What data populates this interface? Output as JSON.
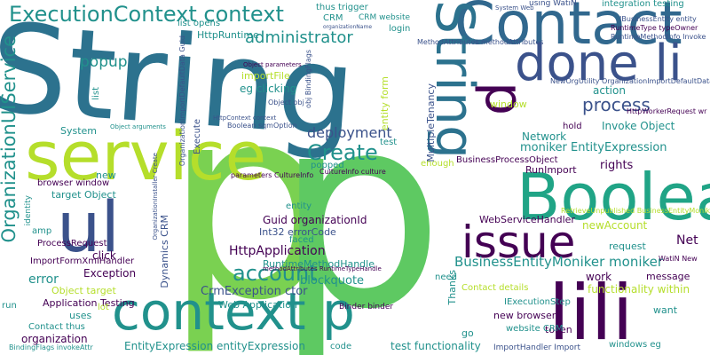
{
  "cloud": {
    "palette": [
      "#440154",
      "#3b528b",
      "#21918c",
      "#5ec962",
      "#fde725"
    ],
    "words": {
      "string": "String",
      "p_big": "p",
      "p_right": "p",
      "service": "service",
      "context_p": "context p",
      "contact": "Contact",
      "done_li": "done li",
      "boolean": "Boolean",
      "lili": "lili",
      "issue": "issue",
      "ul": "ul",
      "org_ui_service": "OrganizationUIService",
      "execution_context": "ExecutionContext context",
      "create": "Create",
      "account": "account",
      "process": "process",
      "administrator": "administrator",
      "popup": "popup",
      "deployment": "deployment",
      "http_application": "HttpApplication",
      "bem_moniker": "BusinessEntityMoniker moniker",
      "blockquote": "blockquote",
      "crm_exception": "CrmException ctor",
      "guid_org_id": "Guid organizationId",
      "int32_error": "Int32 errorCode",
      "rt_method_handle": "RuntimeMethodHandle",
      "web_application": "Web Application",
      "entity_expression": "EntityExpression entityExpression",
      "test_functionality": "test functionality",
      "moniker_entity_expr": "moniker EntityExpression",
      "network": "Network",
      "invoke_object": "Invoke Object",
      "rights": "rights",
      "run_import": "RunImport",
      "bpo": "BusinessProcessObject",
      "action": "action",
      "web_service_handler": "WebServiceHandler",
      "new_account": "newAccount",
      "net": "Net",
      "request": "request",
      "work": "work",
      "message": "message",
      "functionality_within": "functionality within",
      "want": "want",
      "token": "token",
      "new_browser": "new browser",
      "website_crm": "website CRM",
      "contact_details": "Contact details",
      "iexecution_step": "IExecutionStep",
      "import_handler": "ImportHandler Import",
      "windows_eg": "windows eg",
      "exception": "Exception",
      "error": "error",
      "application_testing": "Application Testing",
      "uses": "uses",
      "contact_thus": "Contact thus",
      "organization": "organization",
      "import_form_handler": "ImportFormXmlHandler",
      "process_request": "ProcessRequest",
      "object_target": "Object target",
      "target_object": "target Object",
      "browser_window": "browser window",
      "click": "click",
      "lot": "lot",
      "amp": "amp",
      "run": "run",
      "system": "System",
      "new": "new",
      "dynamics_crm": "Dynamics CRM",
      "http_runtime": "HttpRuntime",
      "list_opens": "list opens",
      "thus_trigger": "thus trigger",
      "crm": "CRM",
      "crm_website": "CRM website",
      "login": "login",
      "using_watin": "using WatiN",
      "integration_testing": "integration testing",
      "import_file": "importFile",
      "eg_clicking": "eg clicking",
      "object_obj": "Object obj",
      "object_params": "Object parameters",
      "boolean_sqm": "Boolean sqmOption",
      "httpctx_context": "HttpContext context",
      "execute": "Execute",
      "entity_form": "entity form",
      "window": "window",
      "multiple_tenancy": "MultipleTenancy",
      "test": "test",
      "hold": "hold",
      "enough": "enough",
      "popped": "popped",
      "entity": "entity",
      "faced": "faced",
      "code": "code",
      "need": "need",
      "go": "go",
      "binder_binder": "Binder binder",
      "thanks": "Thanks",
      "method_attributes": "MethodAttributes methodAttributes",
      "params_culture": "parameters CultureInfo",
      "culture_info": "CultureInfo culture",
      "list": "list",
      "identity": "identity",
      "ibusiness_entity": "IBusinessEntity entity",
      "rtt_owner": "RuntimeType typeOwner",
      "rtmi_invoke": "RuntimeMethodInfo Invoke",
      "new_org_utility": "NewOrgUtility OrganizationImportDefaultData",
      "http_worker_request": "HttpWorkerRequest wr",
      "watin_new": "WatiN New",
      "rt_unpublished": "RetrieveUnpublished BusinessEntityMoniker",
      "system_web": "System Web",
      "org_name": "organizationName",
      "object_arguments": "Object arguments",
      "org_import_guid": "OrganizationImportDefaultData Guid",
      "obj_binding_flags": "obj BindingFlags",
      "binding_flags_invoke": "BindingFlags invokeAttr",
      "method_attr_rt": "methodAttributes RuntimeTypeHandle",
      "org_installer": "OrganizationInstaller Create"
    }
  }
}
